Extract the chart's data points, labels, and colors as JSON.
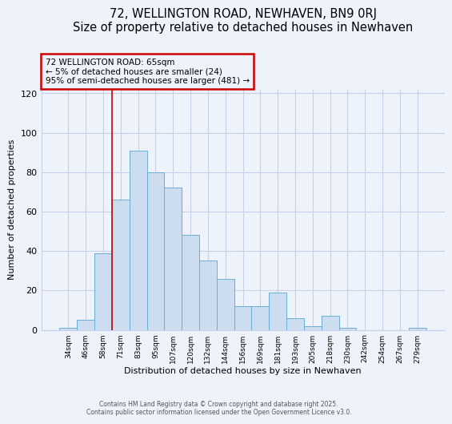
{
  "title": "72, WELLINGTON ROAD, NEWHAVEN, BN9 0RJ",
  "subtitle": "Size of property relative to detached houses in Newhaven",
  "xlabel": "Distribution of detached houses by size in Newhaven",
  "ylabel": "Number of detached properties",
  "bar_labels": [
    "34sqm",
    "46sqm",
    "58sqm",
    "71sqm",
    "83sqm",
    "95sqm",
    "107sqm",
    "120sqm",
    "132sqm",
    "144sqm",
    "156sqm",
    "169sqm",
    "181sqm",
    "193sqm",
    "205sqm",
    "218sqm",
    "230sqm",
    "242sqm",
    "254sqm",
    "267sqm",
    "279sqm"
  ],
  "bar_values": [
    1,
    5,
    39,
    66,
    91,
    80,
    72,
    48,
    35,
    26,
    12,
    12,
    19,
    6,
    2,
    7,
    1,
    0,
    0,
    0,
    1
  ],
  "bar_color": "#cdddf0",
  "bar_edge_color": "#6baed6",
  "vline_x_index": 2.5,
  "vline_color": "#cc0000",
  "annotation_title": "72 WELLINGTON ROAD: 65sqm",
  "annotation_line1": "← 5% of detached houses are smaller (24)",
  "annotation_line2": "95% of semi-detached houses are larger (481) →",
  "annotation_box_color": "#cc0000",
  "ylim": [
    0,
    122
  ],
  "yticks": [
    0,
    20,
    40,
    60,
    80,
    100,
    120
  ],
  "footer1": "Contains HM Land Registry data © Crown copyright and database right 2025.",
  "footer2": "Contains public sector information licensed under the Open Government Licence v3.0.",
  "bg_color": "#eef2fb",
  "grid_color": "#c8d0e8"
}
